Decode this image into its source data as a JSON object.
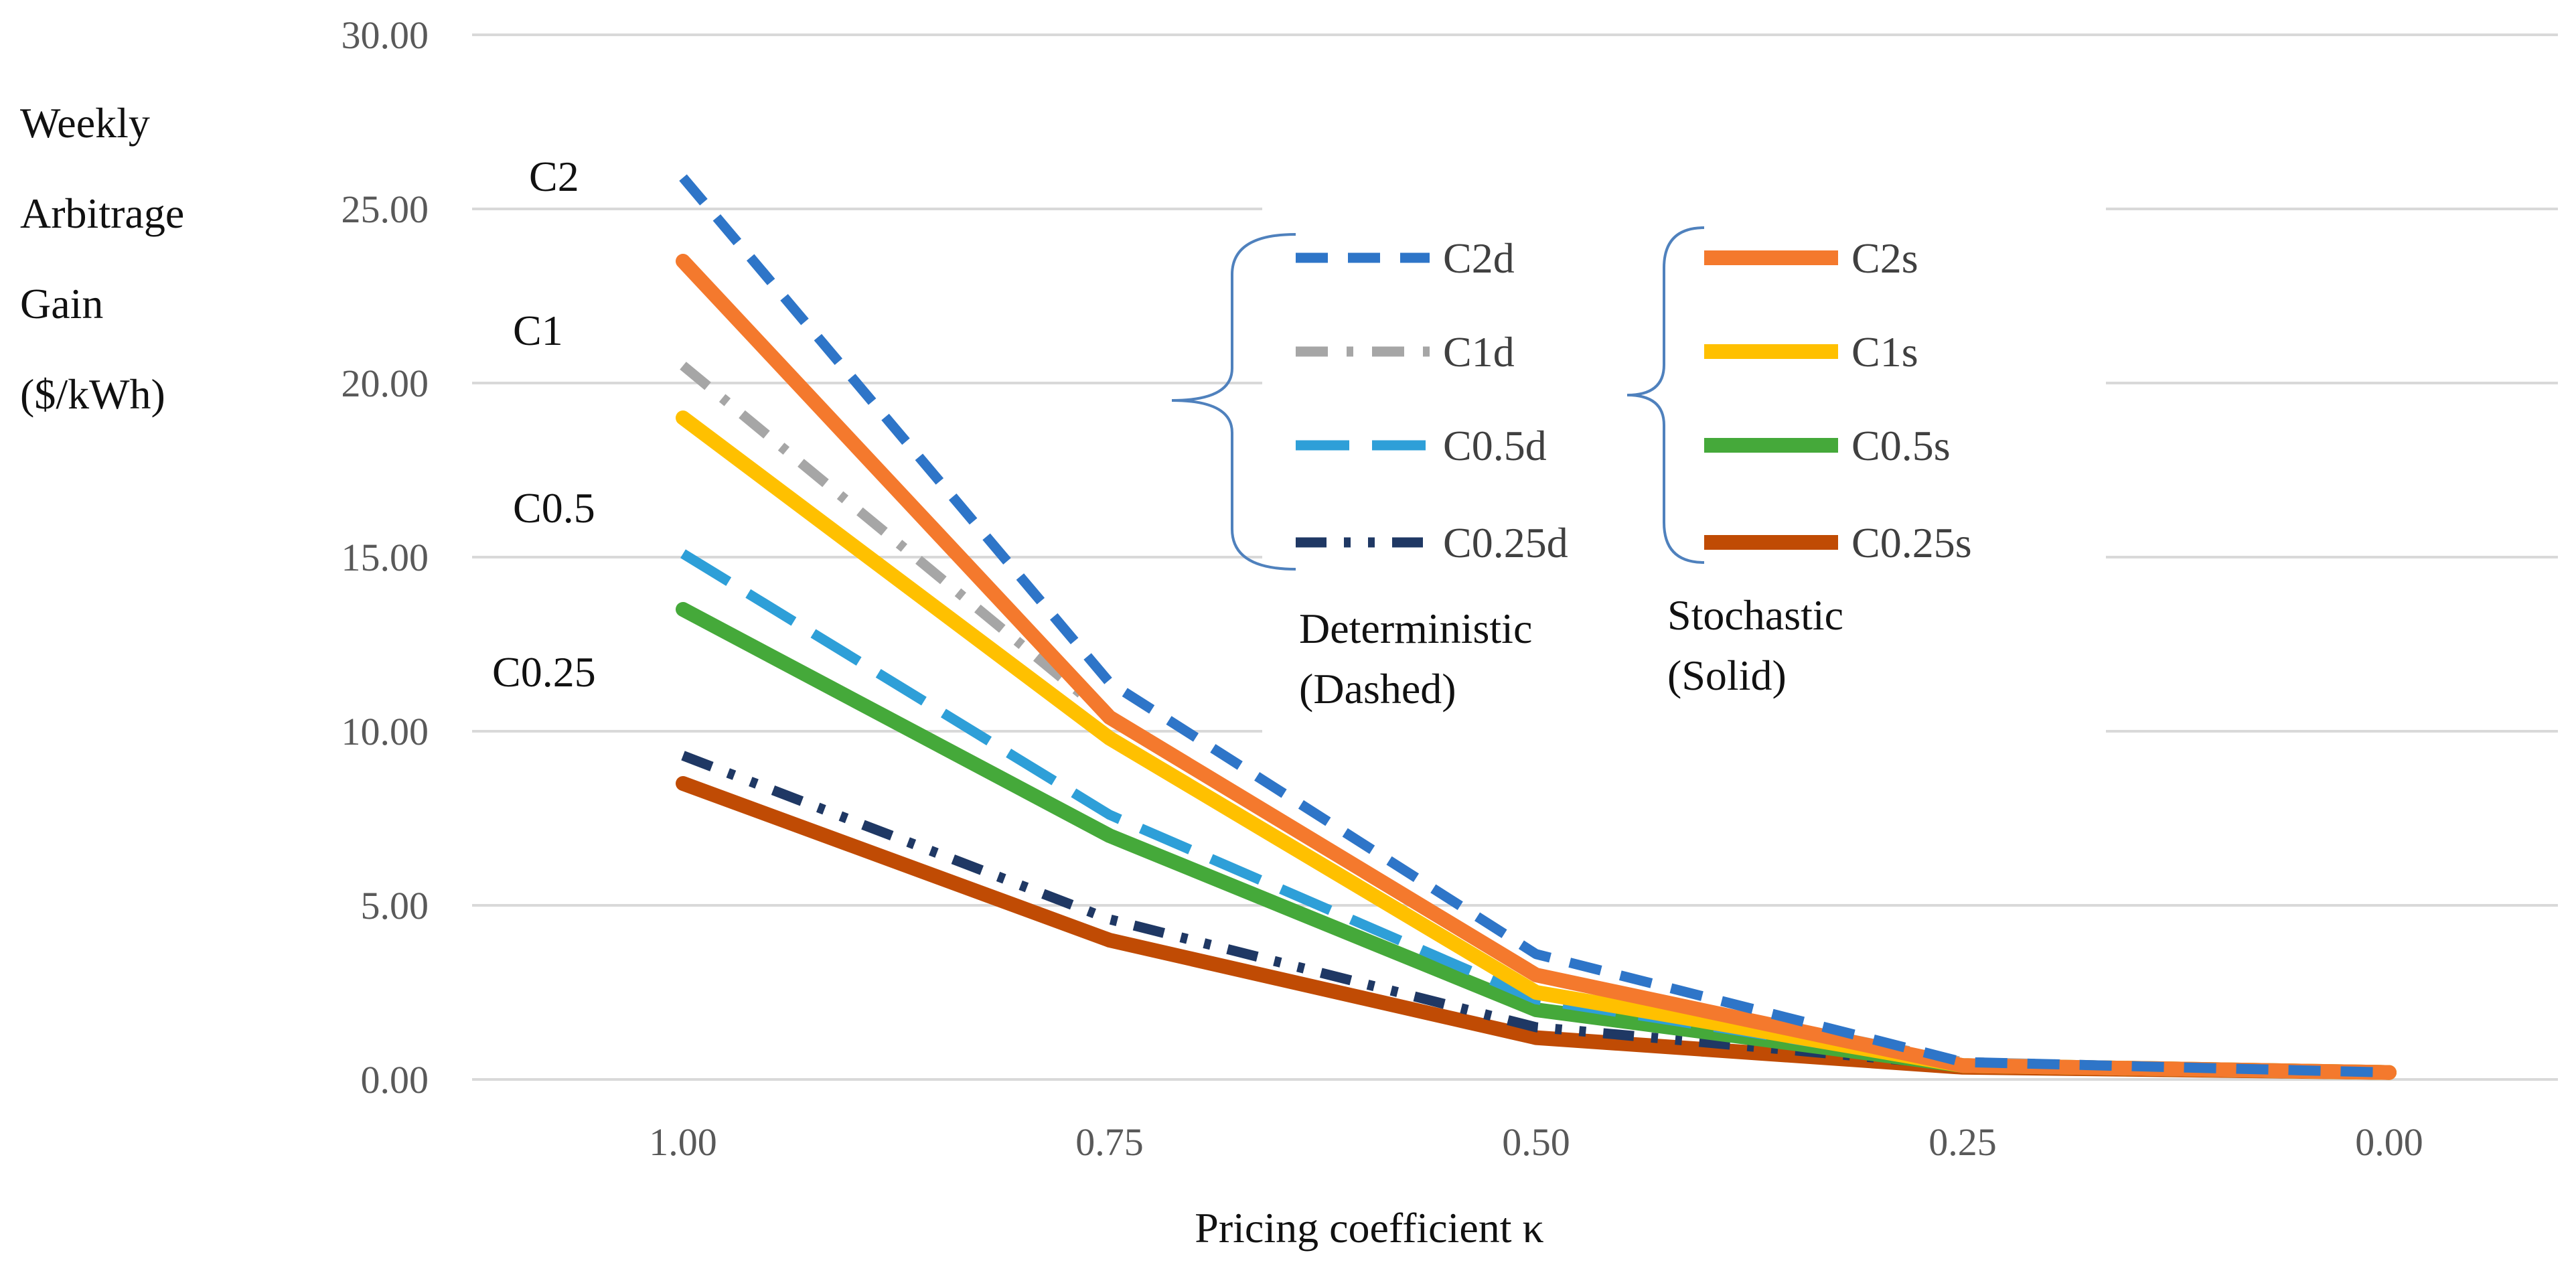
{
  "chart_data": {
    "type": "line",
    "title": "",
    "xlabel": "Pricing coefficient κ",
    "ylabel": [
      "Weekly",
      "Arbitrage",
      "Gain",
      "($/kWh)"
    ],
    "categories": [
      "1.00",
      "0.75",
      "0.50",
      "0.25",
      "0.00"
    ],
    "y_ticks": [
      "0.00",
      "5.00",
      "10.00",
      "15.00",
      "20.00",
      "25.00",
      "30.00"
    ],
    "ylim": [
      0,
      30
    ],
    "grid": true,
    "series": [
      {
        "name": "C2d",
        "values": [
          25.9,
          11.4,
          3.6,
          0.5,
          0.2
        ],
        "color": "#2e75c8",
        "style": "dashed"
      },
      {
        "name": "C1d",
        "values": [
          20.5,
          10.4,
          3.0,
          0.5,
          0.2
        ],
        "color": "#a6a6a6",
        "style": "dashdot"
      },
      {
        "name": "C0.5d",
        "values": [
          15.1,
          7.6,
          2.3,
          0.4,
          0.2
        ],
        "color": "#2e9fd8",
        "style": "longdash"
      },
      {
        "name": "C0.25d",
        "values": [
          9.3,
          4.6,
          1.5,
          0.4,
          0.2
        ],
        "color": "#1f3864",
        "style": "dashdotdot"
      },
      {
        "name": "C2s",
        "values": [
          23.5,
          10.4,
          3.0,
          0.4,
          0.2
        ],
        "color": "#f4792d",
        "style": "solid"
      },
      {
        "name": "C1s",
        "values": [
          19.0,
          9.8,
          2.5,
          0.4,
          0.2
        ],
        "color": "#ffc000",
        "style": "solid"
      },
      {
        "name": "C0.5s",
        "values": [
          13.5,
          7.0,
          2.0,
          0.4,
          0.2
        ],
        "color": "#45a93a",
        "style": "solid"
      },
      {
        "name": "C0.25s",
        "values": [
          8.5,
          4.0,
          1.2,
          0.35,
          0.2
        ],
        "color": "#c04b04",
        "style": "solid"
      }
    ],
    "annotations": [
      "C2",
      "C1",
      "C0.5",
      "C0.25"
    ],
    "legend_groups": [
      {
        "title": "Deterministic",
        "subtitle": "(Dashed)",
        "series": [
          "C2d",
          "C1d",
          "C0.5d",
          "C0.25d"
        ]
      },
      {
        "title": "Stochastic",
        "subtitle": "(Solid)",
        "series": [
          "C2s",
          "C1s",
          "C0.5s",
          "C0.25s"
        ]
      }
    ]
  }
}
